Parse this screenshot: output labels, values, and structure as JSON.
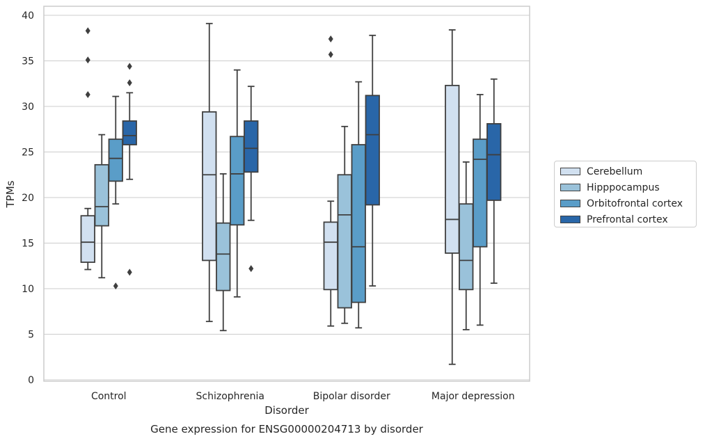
{
  "chart_data": {
    "type": "box",
    "title": "Gene expression for ENSG00000204713 by disorder",
    "xlabel": "Disorder",
    "ylabel": "TPMs",
    "ylim": [
      0,
      40
    ],
    "yticks": [
      "0",
      "5",
      "10",
      "15",
      "20",
      "25",
      "30",
      "35",
      "40"
    ],
    "categories": [
      "Control",
      "Schizophrenia",
      "Bipolar disorder",
      "Major depression"
    ],
    "grid": "horizontal",
    "legend_position": "center-right, outside plot",
    "series": [
      {
        "name": "Cerebellum",
        "color": "#d1e0f0",
        "boxes": [
          {
            "whislo": 12.1,
            "q1": 12.9,
            "med": 15.1,
            "q3": 18.0,
            "whishi": 18.8,
            "fliers": [
              31.3,
              35.1,
              38.3
            ]
          },
          {
            "whislo": 6.4,
            "q1": 13.1,
            "med": 22.5,
            "q3": 29.4,
            "whishi": 39.1,
            "fliers": []
          },
          {
            "whislo": 5.9,
            "q1": 9.9,
            "med": 15.1,
            "q3": 17.3,
            "whishi": 19.6,
            "fliers": [
              35.7,
              37.4
            ]
          },
          {
            "whislo": 1.7,
            "q1": 13.9,
            "med": 17.6,
            "q3": 32.3,
            "whishi": 38.4,
            "fliers": []
          }
        ]
      },
      {
        "name": "Hipppocampus",
        "color": "#9ac2da",
        "boxes": [
          {
            "whislo": 11.2,
            "q1": 16.9,
            "med": 19.0,
            "q3": 23.6,
            "whishi": 26.9,
            "fliers": []
          },
          {
            "whislo": 5.4,
            "q1": 9.8,
            "med": 13.8,
            "q3": 17.2,
            "whishi": 22.6,
            "fliers": []
          },
          {
            "whislo": 6.2,
            "q1": 7.9,
            "med": 18.1,
            "q3": 22.5,
            "whishi": 27.8,
            "fliers": []
          },
          {
            "whislo": 5.5,
            "q1": 9.9,
            "med": 13.1,
            "q3": 19.3,
            "whishi": 23.9,
            "fliers": []
          }
        ]
      },
      {
        "name": "Orbitofrontal cortex",
        "color": "#5a9dc8",
        "boxes": [
          {
            "whislo": 19.3,
            "q1": 21.8,
            "med": 24.3,
            "q3": 26.4,
            "whishi": 31.1,
            "fliers": [
              10.3
            ]
          },
          {
            "whislo": 9.1,
            "q1": 17.0,
            "med": 22.6,
            "q3": 26.7,
            "whishi": 34.0,
            "fliers": []
          },
          {
            "whislo": 5.7,
            "q1": 8.5,
            "med": 14.6,
            "q3": 25.8,
            "whishi": 32.7,
            "fliers": []
          },
          {
            "whislo": 6.0,
            "q1": 14.6,
            "med": 24.2,
            "q3": 26.4,
            "whishi": 31.3,
            "fliers": []
          }
        ]
      },
      {
        "name": "Prefrontal cortex",
        "color": "#2966a8",
        "boxes": [
          {
            "whislo": 22.0,
            "q1": 25.8,
            "med": 26.8,
            "q3": 28.4,
            "whishi": 31.5,
            "fliers": [
              11.8,
              32.6,
              34.4
            ]
          },
          {
            "whislo": 17.5,
            "q1": 22.8,
            "med": 25.4,
            "q3": 28.4,
            "whishi": 32.2,
            "fliers": [
              12.2
            ]
          },
          {
            "whislo": 10.3,
            "q1": 19.2,
            "med": 26.9,
            "q3": 31.2,
            "whishi": 37.8,
            "fliers": []
          },
          {
            "whislo": 10.6,
            "q1": 19.7,
            "med": 24.7,
            "q3": 28.1,
            "whishi": 33.0,
            "fliers": []
          }
        ]
      }
    ]
  }
}
